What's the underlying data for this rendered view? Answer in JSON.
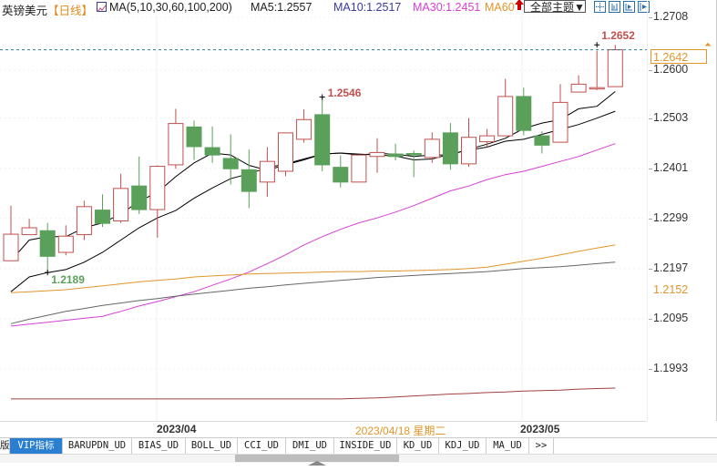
{
  "header": {
    "title": "英镑美元",
    "period": "【日线】",
    "ma_params": "MA(5,10,30,60,100,200)",
    "ma5": "MA5:1.2557",
    "ma10": "MA10:1.2517",
    "ma30": "MA30:1.2451",
    "ma60": "MA60",
    "arrow": "🡅",
    "theme_select": "全部主题▼",
    "tools": [
      "crosshair-icon",
      "bar-mode-icon",
      "play-icon",
      "export-icon"
    ]
  },
  "colors": {
    "up": "#c0504d",
    "down": "#5aa05a",
    "ma5": "#000000",
    "ma10": "#000000",
    "ma30": "#d63fd6",
    "ma60": "#e0962a",
    "ma100": "#666666",
    "ma200": "#a04040",
    "highlight": "#e0962a"
  },
  "yaxis": {
    "labels": [
      "1.2708",
      "1.2600",
      "1.2503",
      "1.2401",
      "1.2299",
      "1.2197",
      "1.2095",
      "1.1993"
    ],
    "current_price": "1.2642",
    "ma_marker": "1.2152"
  },
  "xaxis": {
    "labels": [
      "2023/04",
      "2023/05"
    ],
    "cursor_date": "2023/04/18 星期二"
  },
  "annotations": {
    "high_1": "1.2546",
    "high_2": "1.2652",
    "low": "1.2189"
  },
  "tabs": [
    {
      "label": "VIP指标",
      "active": true
    },
    {
      "label": "BARUPDN_UD"
    },
    {
      "label": "BIAS_UD"
    },
    {
      "label": "BOLL_UD"
    },
    {
      "label": "CCI_UD"
    },
    {
      "label": "DMI_UD"
    },
    {
      "label": "INSIDE_UD"
    },
    {
      "label": "KD_UD"
    },
    {
      "label": "KDJ_UD"
    },
    {
      "label": "MA_UD"
    },
    {
      "label": ">>"
    }
  ],
  "chart_data": {
    "type": "candlestick",
    "title": "英镑美元 日线",
    "xlabel": "",
    "ylabel": "",
    "ylim": [
      1.192,
      1.274
    ],
    "yticks": [
      1.2708,
      1.26,
      1.2503,
      1.2401,
      1.2299,
      1.2197,
      1.2095,
      1.1993
    ],
    "x_tick_labels": [
      "2023/04",
      "2023/05"
    ],
    "candles": [
      {
        "o": 1.2213,
        "h": 1.2325,
        "c": 1.2267,
        "l": 1.2213
      },
      {
        "o": 1.2266,
        "h": 1.2298,
        "c": 1.228,
        "l": 1.2266
      },
      {
        "o": 1.2274,
        "h": 1.229,
        "c": 1.2222,
        "l": 1.2189
      },
      {
        "o": 1.223,
        "h": 1.2285,
        "c": 1.2263,
        "l": 1.2224
      },
      {
        "o": 1.2266,
        "h": 1.2335,
        "c": 1.2323,
        "l": 1.2255
      },
      {
        "o": 1.2316,
        "h": 1.2348,
        "c": 1.2289,
        "l": 1.2282
      },
      {
        "o": 1.2294,
        "h": 1.239,
        "c": 1.236,
        "l": 1.229
      },
      {
        "o": 1.2365,
        "h": 1.2425,
        "c": 1.2317,
        "l": 1.2308
      },
      {
        "o": 1.2317,
        "h": 1.2407,
        "c": 1.2405,
        "l": 1.226
      },
      {
        "o": 1.2408,
        "h": 1.2522,
        "c": 1.2492,
        "l": 1.24
      },
      {
        "o": 1.2485,
        "h": 1.2498,
        "c": 1.2445,
        "l": 1.2418
      },
      {
        "o": 1.2443,
        "h": 1.2486,
        "c": 1.2428,
        "l": 1.2412
      },
      {
        "o": 1.2421,
        "h": 1.247,
        "c": 1.24,
        "l": 1.2368
      },
      {
        "o": 1.2398,
        "h": 1.2439,
        "c": 1.2354,
        "l": 1.232
      },
      {
        "o": 1.2373,
        "h": 1.2444,
        "c": 1.2415,
        "l": 1.2343
      },
      {
        "o": 1.2395,
        "h": 1.2465,
        "c": 1.2473,
        "l": 1.2385
      },
      {
        "o": 1.246,
        "h": 1.2521,
        "c": 1.25,
        "l": 1.2453
      },
      {
        "o": 1.251,
        "h": 1.2546,
        "c": 1.2408,
        "l": 1.2395
      },
      {
        "o": 1.2403,
        "h": 1.2427,
        "c": 1.2373,
        "l": 1.2362
      },
      {
        "o": 1.2373,
        "h": 1.2426,
        "c": 1.2428,
        "l": 1.2373
      },
      {
        "o": 1.2425,
        "h": 1.2462,
        "c": 1.2433,
        "l": 1.2392
      },
      {
        "o": 1.243,
        "h": 1.2451,
        "c": 1.2425,
        "l": 1.2417
      },
      {
        "o": 1.2431,
        "h": 1.2437,
        "c": 1.243,
        "l": 1.2383
      },
      {
        "o": 1.2423,
        "h": 1.2474,
        "c": 1.246,
        "l": 1.2412
      },
      {
        "o": 1.2473,
        "h": 1.2493,
        "c": 1.241,
        "l": 1.2398
      },
      {
        "o": 1.241,
        "h": 1.2503,
        "c": 1.2464,
        "l": 1.2404
      },
      {
        "o": 1.2455,
        "h": 1.2481,
        "c": 1.2467,
        "l": 1.2444
      },
      {
        "o": 1.2467,
        "h": 1.2583,
        "c": 1.2547,
        "l": 1.2466
      },
      {
        "o": 1.2547,
        "h": 1.2565,
        "c": 1.2478,
        "l": 1.2468
      },
      {
        "o": 1.2467,
        "h": 1.2476,
        "c": 1.2448,
        "l": 1.2431
      },
      {
        "o": 1.2454,
        "h": 1.2572,
        "c": 1.2535,
        "l": 1.2453
      },
      {
        "o": 1.2556,
        "h": 1.259,
        "c": 1.2572,
        "l": 1.2556
      },
      {
        "o": 1.2565,
        "h": 1.264,
        "c": 1.2565,
        "l": 1.256
      },
      {
        "o": 1.2567,
        "h": 1.2652,
        "c": 1.2642,
        "l": 1.2567
      }
    ],
    "series": [
      {
        "name": "MA5",
        "values": [
          1.2213,
          1.2255,
          1.2262,
          1.2262,
          1.228,
          1.229,
          1.2308,
          1.2334,
          1.2352,
          1.2384,
          1.2412,
          1.2432,
          1.2428,
          1.2407,
          1.2397,
          1.2408,
          1.2418,
          1.243,
          1.2432,
          1.2428,
          1.2431,
          1.243,
          1.2425,
          1.2428,
          1.2428,
          1.244,
          1.245,
          1.2462,
          1.2482,
          1.2493,
          1.25,
          1.2522,
          1.2527,
          1.2557
        ]
      },
      {
        "name": "MA10",
        "values": [
          1.215,
          1.218,
          1.2189,
          1.2195,
          1.221,
          1.223,
          1.2255,
          1.228,
          1.23,
          1.2315,
          1.234,
          1.2361,
          1.238,
          1.239,
          1.2402,
          1.241,
          1.242,
          1.243,
          1.2432,
          1.243,
          1.2428,
          1.2426,
          1.2418,
          1.242,
          1.243,
          1.2438,
          1.2444,
          1.2456,
          1.246,
          1.247,
          1.248,
          1.249,
          1.2503,
          1.2517
        ]
      },
      {
        "name": "MA30",
        "values": [
          1.208,
          1.2084,
          1.2088,
          1.2092,
          1.2096,
          1.21,
          1.211,
          1.2121,
          1.213,
          1.214,
          1.215,
          1.2163,
          1.2176,
          1.219,
          1.2207,
          1.2225,
          1.2245,
          1.2262,
          1.2277,
          1.229,
          1.23,
          1.2312,
          1.2325,
          1.234,
          1.2355,
          1.2365,
          1.2378,
          1.2388,
          1.2395,
          1.2405,
          1.2415,
          1.2425,
          1.2438,
          1.2451
        ]
      },
      {
        "name": "MA60",
        "values": [
          1.2148,
          1.215,
          1.2152,
          1.2154,
          1.2158,
          1.2162,
          1.2166,
          1.217,
          1.2173,
          1.2176,
          1.218,
          1.2182,
          1.2184,
          1.2186,
          1.2187,
          1.2188,
          1.2189,
          1.219,
          1.2191,
          1.2191,
          1.2192,
          1.2192,
          1.2193,
          1.2194,
          1.2195,
          1.2197,
          1.22,
          1.2206,
          1.2212,
          1.2218,
          1.2225,
          1.2232,
          1.2239,
          1.2245
        ]
      },
      {
        "name": "MA100",
        "values": [
          1.2085,
          1.2094,
          1.2102,
          1.211,
          1.2116,
          1.2122,
          1.2127,
          1.2132,
          1.2136,
          1.2141,
          1.2145,
          1.2149,
          1.2153,
          1.2157,
          1.216,
          1.2164,
          1.2167,
          1.217,
          1.2173,
          1.2176,
          1.2179,
          1.2181,
          1.2183,
          1.2185,
          1.2187,
          1.2189,
          1.2191,
          1.2194,
          1.2197,
          1.2199,
          1.2201,
          1.2204,
          1.2207,
          1.221
        ]
      },
      {
        "name": "MA200",
        "values": [
          1.1932,
          1.1932,
          1.1932,
          1.1932,
          1.1932,
          1.1932,
          1.1932,
          1.1932,
          1.1932,
          1.1932,
          1.1932,
          1.1932,
          1.1932,
          1.1932,
          1.1932,
          1.1932,
          1.1932,
          1.1932,
          1.1932,
          1.1933,
          1.1934,
          1.1936,
          1.1938,
          1.194,
          1.1942,
          1.1943,
          1.1945,
          1.1946,
          1.1948,
          1.1949,
          1.195,
          1.1952,
          1.1953,
          1.1954
        ]
      }
    ],
    "annotations": [
      {
        "label": "1.2546",
        "type": "high"
      },
      {
        "label": "1.2652",
        "type": "high"
      },
      {
        "label": "1.2189",
        "type": "low"
      }
    ],
    "current_price": 1.2642,
    "grid": true
  }
}
